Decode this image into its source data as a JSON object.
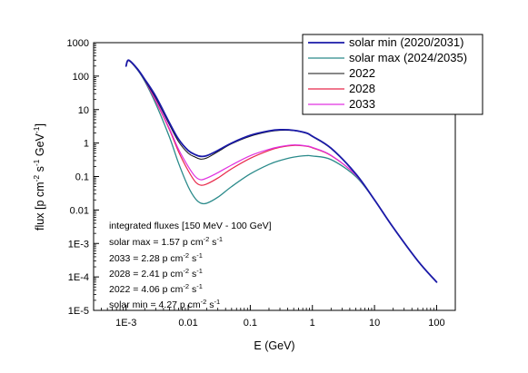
{
  "chart_data": {
    "type": "line",
    "xlabel": "E (GeV)",
    "ylabel": "flux  [p cm-2 s-1 GeV-1]",
    "x_scale": "log",
    "y_scale": "log",
    "xlim": [
      0.0003,
      200
    ],
    "ylim": [
      1e-05,
      1000
    ],
    "grid": false,
    "legend_position": "top-right",
    "x_ticks": [
      {
        "value": 0.001,
        "label": "1E-3"
      },
      {
        "value": 0.01,
        "label": "0.01"
      },
      {
        "value": 0.1,
        "label": "0.1"
      },
      {
        "value": 1,
        "label": "1"
      },
      {
        "value": 10,
        "label": "10"
      },
      {
        "value": 100,
        "label": "100"
      }
    ],
    "y_ticks": [
      {
        "value": 1e-05,
        "label": "1E-5"
      },
      {
        "value": 0.0001,
        "label": "1E-4"
      },
      {
        "value": 0.001,
        "label": "1E-3"
      },
      {
        "value": 0.01,
        "label": "0.01"
      },
      {
        "value": 0.1,
        "label": "0.1"
      },
      {
        "value": 1,
        "label": "1"
      },
      {
        "value": 10,
        "label": "10"
      },
      {
        "value": 100,
        "label": "100"
      },
      {
        "value": 1000,
        "label": "1000"
      }
    ],
    "series": [
      {
        "name": "solar min (2020/2031)",
        "color": "#1a1aa8",
        "width": 1.8,
        "x": [
          0.001,
          0.0011,
          0.0015,
          0.002,
          0.003,
          0.005,
          0.007,
          0.01,
          0.013,
          0.016,
          0.02,
          0.03,
          0.05,
          0.1,
          0.2,
          0.3,
          0.5,
          0.8,
          1,
          2,
          5,
          10,
          20,
          50,
          100
        ],
        "y": [
          200,
          300,
          170,
          80,
          25,
          4,
          1.3,
          0.6,
          0.45,
          0.4,
          0.42,
          0.6,
          1.0,
          1.7,
          2.3,
          2.5,
          2.4,
          2.0,
          1.6,
          0.7,
          0.12,
          0.02,
          0.003,
          0.0003,
          7e-05
        ]
      },
      {
        "name": "solar max (2024/2035)",
        "color": "#2a8a8a",
        "width": 1.3,
        "x": [
          0.001,
          0.0011,
          0.0015,
          0.002,
          0.003,
          0.005,
          0.007,
          0.01,
          0.013,
          0.016,
          0.02,
          0.03,
          0.05,
          0.1,
          0.2,
          0.3,
          0.5,
          0.8,
          1,
          2,
          5,
          10,
          20,
          50,
          100
        ],
        "y": [
          200,
          290,
          160,
          70,
          15,
          1.5,
          0.25,
          0.05,
          0.022,
          0.016,
          0.016,
          0.024,
          0.05,
          0.12,
          0.23,
          0.3,
          0.38,
          0.42,
          0.41,
          0.32,
          0.1,
          0.02,
          0.003,
          0.0003,
          7e-05
        ]
      },
      {
        "name": "2022",
        "color": "#111111",
        "width": 1.0,
        "x": [
          0.001,
          0.0011,
          0.0015,
          0.002,
          0.003,
          0.005,
          0.007,
          0.01,
          0.013,
          0.016,
          0.02,
          0.03,
          0.05,
          0.1,
          0.2,
          0.3,
          0.5,
          0.8,
          1,
          2,
          5,
          10,
          20,
          50,
          100
        ],
        "y": [
          200,
          290,
          165,
          75,
          22,
          3.5,
          1.1,
          0.5,
          0.38,
          0.33,
          0.36,
          0.55,
          0.95,
          1.6,
          2.2,
          2.4,
          2.35,
          1.95,
          1.55,
          0.68,
          0.12,
          0.02,
          0.003,
          0.0003,
          7e-05
        ]
      },
      {
        "name": "2028",
        "color": "#e8284a",
        "width": 1.2,
        "x": [
          0.001,
          0.0011,
          0.0015,
          0.002,
          0.003,
          0.005,
          0.007,
          0.01,
          0.013,
          0.016,
          0.02,
          0.03,
          0.05,
          0.1,
          0.2,
          0.3,
          0.5,
          0.8,
          1,
          2,
          5,
          10,
          20,
          50,
          100
        ],
        "y": [
          200,
          290,
          165,
          75,
          18,
          2.5,
          0.55,
          0.15,
          0.07,
          0.055,
          0.06,
          0.09,
          0.17,
          0.35,
          0.6,
          0.75,
          0.85,
          0.8,
          0.72,
          0.42,
          0.11,
          0.02,
          0.003,
          0.0003,
          7e-05
        ]
      },
      {
        "name": "2033",
        "color": "#e030e0",
        "width": 1.2,
        "x": [
          0.001,
          0.0011,
          0.0015,
          0.002,
          0.003,
          0.005,
          0.007,
          0.01,
          0.013,
          0.016,
          0.02,
          0.03,
          0.05,
          0.1,
          0.2,
          0.3,
          0.5,
          0.8,
          1,
          2,
          5,
          10,
          20,
          50,
          100
        ],
        "y": [
          200,
          290,
          165,
          75,
          19,
          2.7,
          0.65,
          0.2,
          0.1,
          0.08,
          0.09,
          0.13,
          0.22,
          0.42,
          0.65,
          0.78,
          0.88,
          0.82,
          0.74,
          0.43,
          0.11,
          0.02,
          0.003,
          0.0003,
          7e-05
        ]
      }
    ],
    "annotation": {
      "title": "integrated fluxes [150 MeV - 100 GeV]",
      "lines": [
        {
          "label": "solar max = 1.57 p cm",
          "e1": "-2",
          "mid": " s",
          "e2": "-1"
        },
        {
          "label": "2033 = 2.28 p cm",
          "e1": "-2",
          "mid": " s",
          "e2": "-1"
        },
        {
          "label": "2028 = 2.41 p cm",
          "e1": "-2",
          "mid": " s",
          "e2": "-1"
        },
        {
          "label": "2022 = 4.06 p cm",
          "e1": "-2",
          "mid": " s",
          "e2": "-1"
        },
        {
          "label": "solar min = 4.27 p cm",
          "e1": "-2",
          "mid": " s",
          "e2": "-1"
        }
      ]
    }
  },
  "ylabel_parts": {
    "pre": "flux  [p cm",
    "e1": "-2",
    "mid": " s",
    "e2": "-1",
    "mid2": " GeV",
    "e3": "-1",
    "post": "]"
  }
}
